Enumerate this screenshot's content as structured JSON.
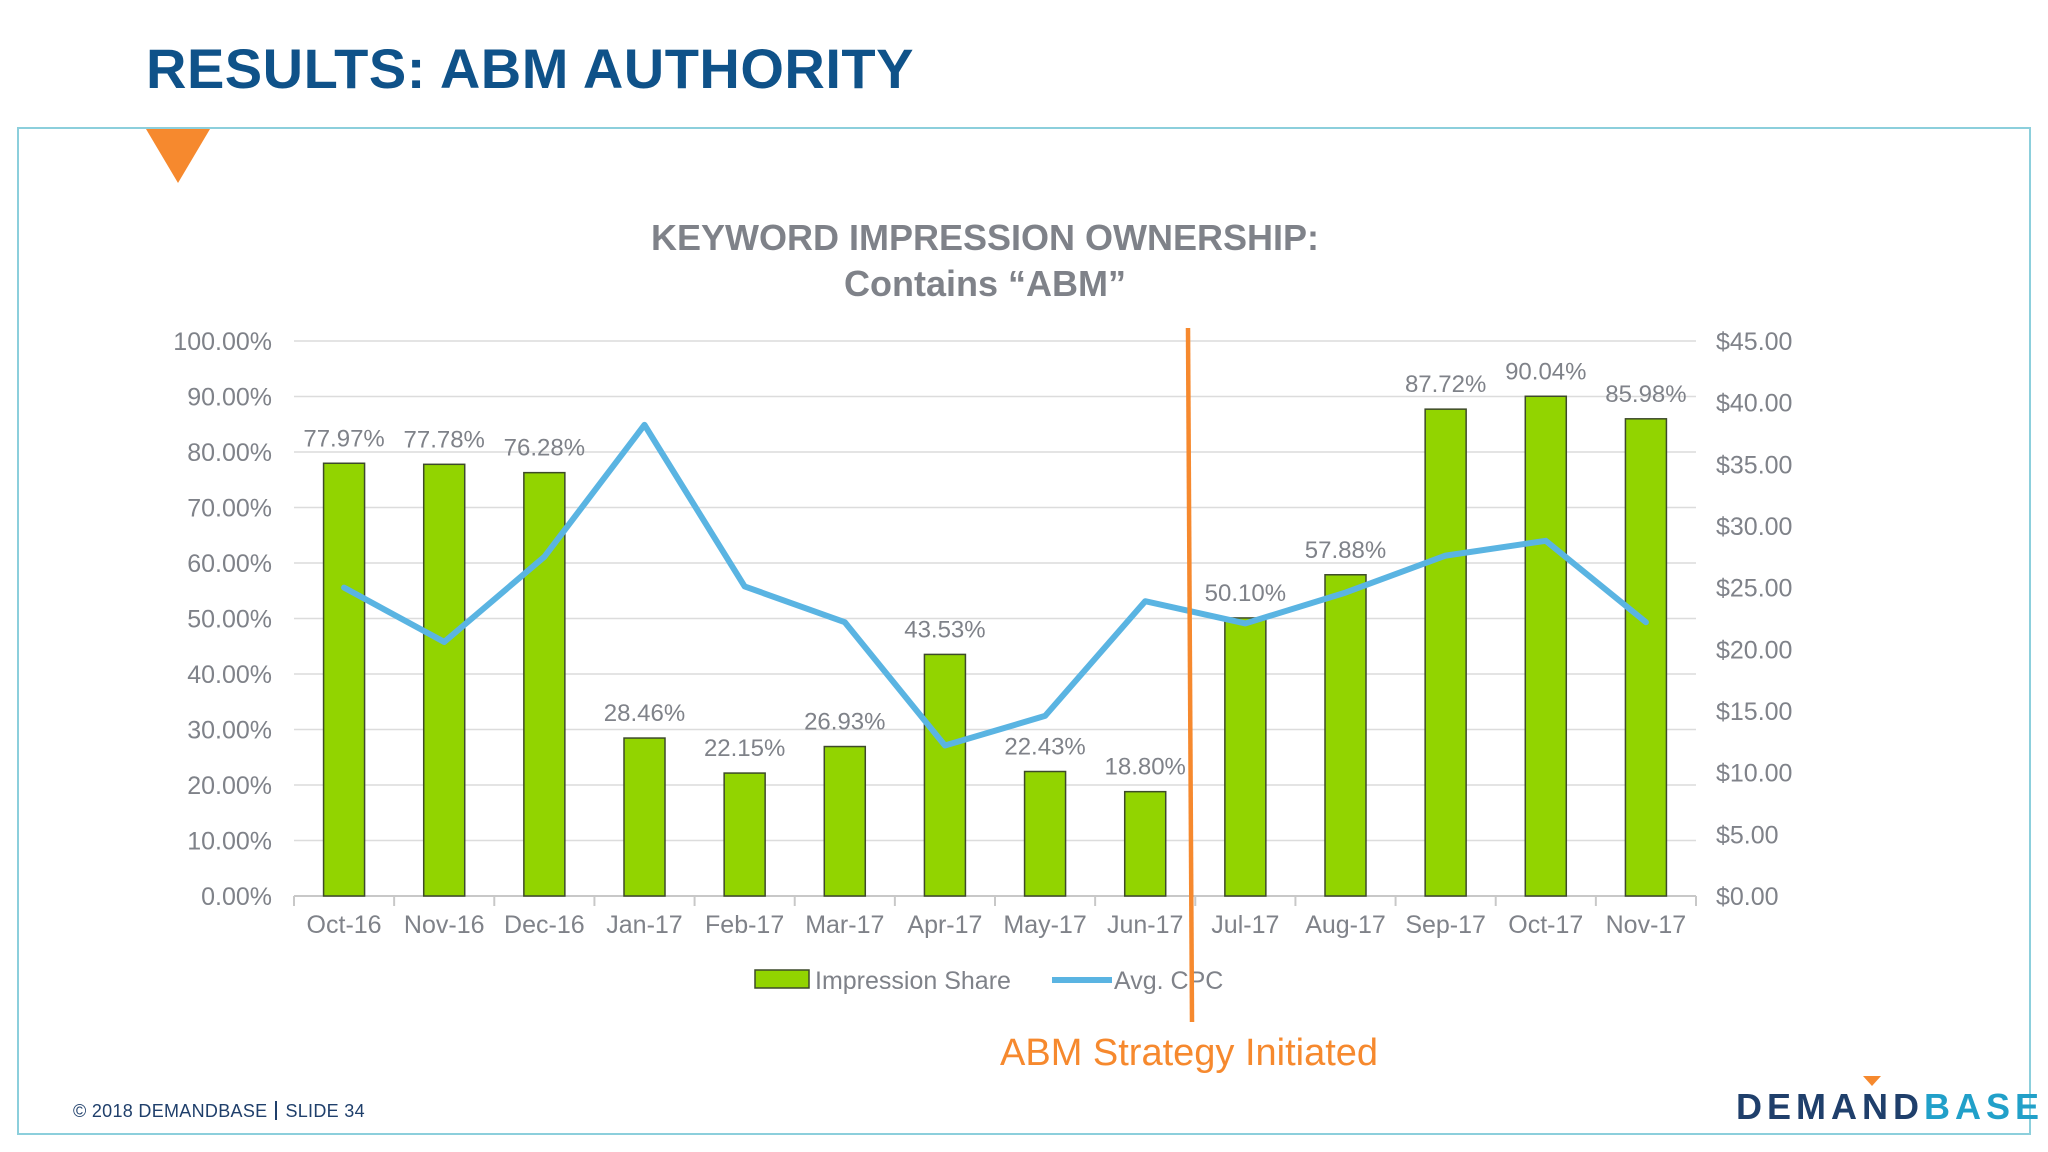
{
  "slide": {
    "title": "RESULTS: ABM AUTHORITY",
    "footer_copyright": "© 2018 DEMANDBASE",
    "footer_slide": "SLIDE 34",
    "logo_dark": "DEMAND",
    "logo_light": "BASE",
    "annotation": "ABM Strategy Initiated",
    "colors": {
      "title": "#0f5289",
      "accent_orange": "#f6892e",
      "panel_border": "#8ccfdc",
      "bar_fill": "#92d400",
      "line": "#5ab4e2",
      "logo_dark": "#1f3f6b",
      "logo_light": "#21a0c9"
    }
  },
  "chart_data": {
    "type": "bar",
    "title_line1": "KEYWORD IMPRESSION OWNERSHIP:",
    "title_line2": "Contains “ABM”",
    "categories": [
      "Oct-16",
      "Nov-16",
      "Dec-16",
      "Jan-17",
      "Feb-17",
      "Mar-17",
      "Apr-17",
      "May-17",
      "Jun-17",
      "Jul-17",
      "Aug-17",
      "Sep-17",
      "Oct-17",
      "Nov-17"
    ],
    "series": [
      {
        "name": "Impression Share",
        "type": "bar",
        "axis": "left",
        "values": [
          77.97,
          77.78,
          76.28,
          28.46,
          22.15,
          26.93,
          43.53,
          22.43,
          18.8,
          50.1,
          57.88,
          87.72,
          90.04,
          85.98
        ],
        "labels": [
          "77.97%",
          "77.78%",
          "76.28%",
          "28.46%",
          "22.15%",
          "26.93%",
          "43.53%",
          "22.43%",
          "18.80%",
          "50.10%",
          "57.88%",
          "87.72%",
          "90.04%",
          "85.98%"
        ]
      },
      {
        "name": "Avg. CPC",
        "type": "line",
        "axis": "right",
        "values": [
          25.0,
          20.6,
          27.5,
          38.2,
          25.1,
          22.2,
          12.2,
          14.6,
          23.9,
          22.1,
          24.6,
          27.6,
          28.8,
          22.2
        ]
      }
    ],
    "y_left": {
      "min": 0,
      "max": 100,
      "ticks": [
        "0.00%",
        "10.00%",
        "20.00%",
        "30.00%",
        "40.00%",
        "50.00%",
        "60.00%",
        "70.00%",
        "80.00%",
        "90.00%",
        "100.00%"
      ]
    },
    "y_right": {
      "min": 0,
      "max": 45,
      "ticks": [
        "$0.00",
        "$5.00",
        "$10.00",
        "$15.00",
        "$20.00",
        "$25.00",
        "$30.00",
        "$35.00",
        "$40.00",
        "$45.00"
      ]
    },
    "grid": true,
    "legend_position": "bottom",
    "marker": {
      "between": [
        "Jun-17",
        "Jul-17"
      ],
      "label": "ABM Strategy Initiated"
    }
  }
}
